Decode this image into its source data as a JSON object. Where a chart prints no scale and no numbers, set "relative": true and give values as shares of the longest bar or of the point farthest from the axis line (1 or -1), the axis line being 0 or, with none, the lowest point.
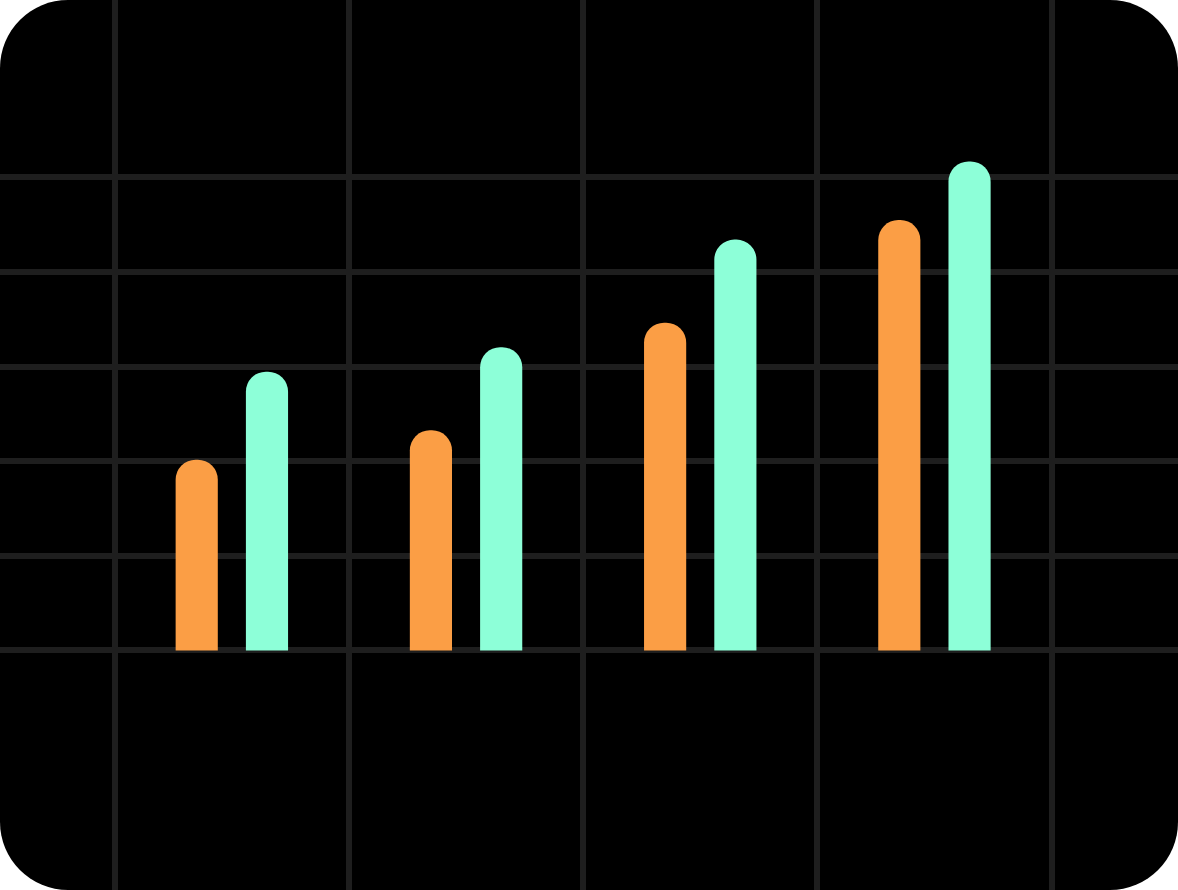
{
  "chart_data": {
    "type": "bar",
    "relative": true,
    "grid": true,
    "categories": [
      null,
      null,
      null,
      null
    ],
    "series": [
      {
        "color": "#fb9e45",
        "values": [
          0.39,
          0.45,
          0.67,
          0.88
        ]
      },
      {
        "color": "#8dffd8",
        "values": [
          0.57,
          0.62,
          0.84,
          1
        ]
      }
    ]
  }
}
